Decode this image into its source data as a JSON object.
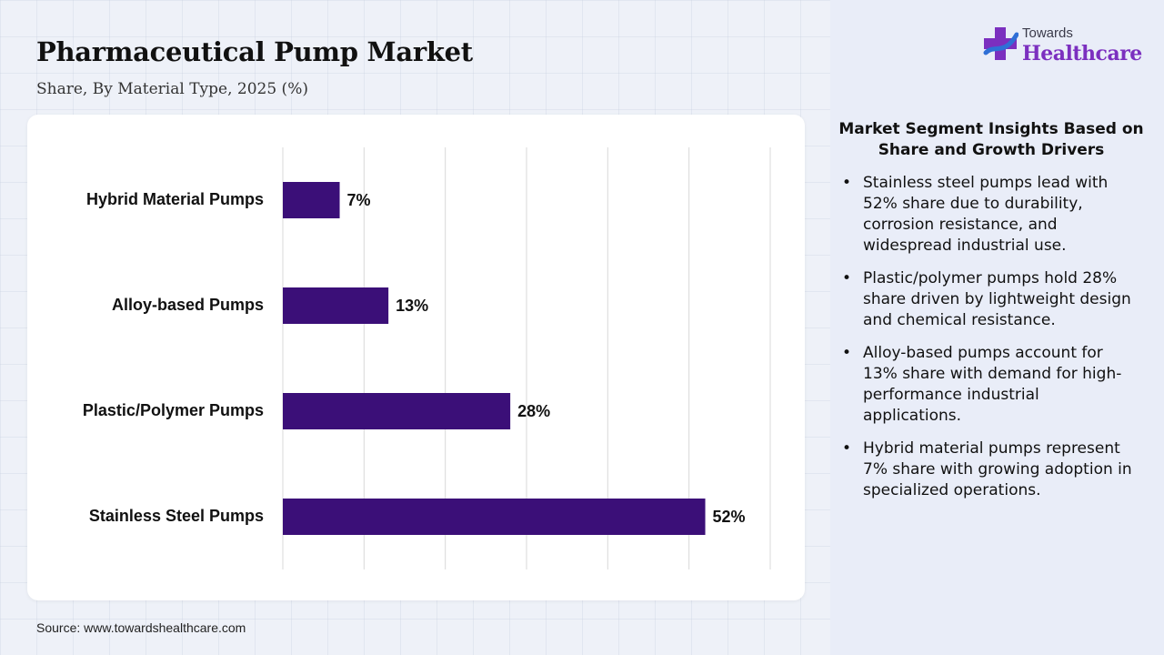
{
  "header": {
    "title": "Pharmaceutical Pump Market",
    "subtitle": "Share, By Material Type, 2025 (%)"
  },
  "chart_data": {
    "type": "bar",
    "orientation": "horizontal",
    "categories": [
      "Hybrid Material Pumps",
      "Alloy-based Pumps",
      "Plastic/Polymer Pumps",
      "Stainless Steel Pumps"
    ],
    "values": [
      7,
      13,
      28,
      52
    ],
    "data_labels": [
      "7%",
      "13%",
      "28%",
      "52%"
    ],
    "xlim": [
      0,
      60
    ],
    "grid": true,
    "bar_color": "#3b0f78"
  },
  "source": "Source: www.towardshealthcare.com",
  "logo": {
    "small": "Towards",
    "big": "Healthcare",
    "colors": {
      "purple": "#7b2fbf",
      "blue": "#2f6fd6"
    }
  },
  "insights": {
    "title": "Market Segment Insights Based on Share and Growth Drivers",
    "bullets": [
      "Stainless steel pumps lead with 52% share due to durability, corrosion resistance, and widespread industrial use.",
      "Plastic/polymer pumps hold 28% share driven by lightweight design and chemical resistance.",
      "Alloy-based pumps account for 13% share with demand for high-performance industrial applications.",
      "Hybrid material pumps represent 7% share with growing adoption in specialized operations."
    ]
  }
}
